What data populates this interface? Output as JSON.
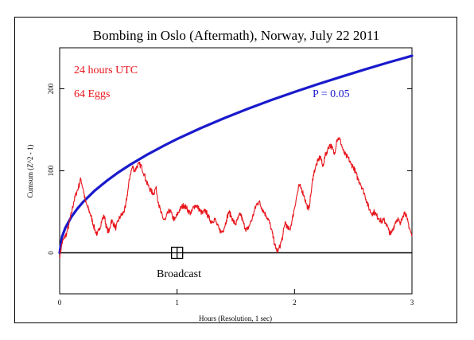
{
  "chart_data": {
    "type": "line",
    "title": "Bombing in Oslo (Aftermath), Norway, July 22 2011",
    "xlabel": "Hours (Resolution, 1 sec)",
    "ylabel": "Cumsum (Z^2 - 1)",
    "xlim": [
      0,
      3
    ],
    "ylim": [
      -50,
      250
    ],
    "x_ticks": [
      0,
      1,
      2,
      3
    ],
    "y_ticks": [
      0,
      100,
      200
    ],
    "annotations": {
      "time_window": "24 hours UTC",
      "eggs": "64 Eggs",
      "p_label": "P = 0.05",
      "event_label": "Broadcast"
    },
    "event_marker": {
      "x": 1.0,
      "y": 0
    },
    "grid": false,
    "series": [
      {
        "role": "cumulative deviation",
        "color": "#e8141b",
        "x": [
          0,
          0.02,
          0.04,
          0.06,
          0.08,
          0.1,
          0.12,
          0.14,
          0.16,
          0.18,
          0.2,
          0.22,
          0.24,
          0.26,
          0.28,
          0.3,
          0.32,
          0.34,
          0.36,
          0.38,
          0.4,
          0.42,
          0.44,
          0.46,
          0.48,
          0.5,
          0.52,
          0.54,
          0.56,
          0.58,
          0.6,
          0.62,
          0.64,
          0.66,
          0.68,
          0.7,
          0.72,
          0.74,
          0.76,
          0.78,
          0.8,
          0.82,
          0.84,
          0.86,
          0.88,
          0.9,
          0.92,
          0.94,
          0.96,
          0.98,
          1.0,
          1.02,
          1.04,
          1.06,
          1.08,
          1.1,
          1.12,
          1.14,
          1.16,
          1.18,
          1.2,
          1.22,
          1.24,
          1.26,
          1.28,
          1.3,
          1.32,
          1.34,
          1.36,
          1.38,
          1.4,
          1.42,
          1.44,
          1.46,
          1.48,
          1.5,
          1.52,
          1.54,
          1.56,
          1.58,
          1.6,
          1.62,
          1.64,
          1.66,
          1.68,
          1.7,
          1.72,
          1.74,
          1.76,
          1.78,
          1.8,
          1.82,
          1.84,
          1.86,
          1.88,
          1.9,
          1.92,
          1.94,
          1.96,
          1.98,
          2.0,
          2.02,
          2.04,
          2.06,
          2.08,
          2.1,
          2.12,
          2.14,
          2.16,
          2.18,
          2.2,
          2.22,
          2.24,
          2.26,
          2.28,
          2.3,
          2.32,
          2.34,
          2.36,
          2.38,
          2.4,
          2.42,
          2.44,
          2.46,
          2.48,
          2.5,
          2.52,
          2.54,
          2.56,
          2.58,
          2.6,
          2.62,
          2.64,
          2.66,
          2.68,
          2.7,
          2.72,
          2.74,
          2.76,
          2.78,
          2.8,
          2.82,
          2.84,
          2.86,
          2.88,
          2.9,
          2.92,
          2.94,
          2.96,
          2.98,
          3.0
        ],
        "y": [
          -5,
          12,
          18,
          24,
          35,
          48,
          62,
          72,
          80,
          90,
          78,
          62,
          55,
          48,
          38,
          28,
          22,
          30,
          40,
          45,
          30,
          25,
          40,
          35,
          30,
          40,
          45,
          48,
          55,
          75,
          95,
          105,
          100,
          106,
          108,
          104,
          96,
          86,
          80,
          75,
          72,
          80,
          62,
          50,
          42,
          40,
          48,
          52,
          44,
          40,
          46,
          52,
          56,
          58,
          55,
          50,
          48,
          56,
          58,
          55,
          50,
          48,
          52,
          46,
          40,
          38,
          42,
          34,
          28,
          25,
          30,
          40,
          50,
          45,
          38,
          35,
          42,
          48,
          38,
          30,
          28,
          35,
          42,
          52,
          60,
          62,
          55,
          50,
          45,
          40,
          30,
          18,
          5,
          2,
          10,
          20,
          38,
          30,
          28,
          40,
          55,
          70,
          82,
          78,
          70,
          60,
          52,
          72,
          95,
          105,
          112,
          118,
          105,
          118,
          125,
          132,
          128,
          120,
          138,
          140,
          132,
          122,
          118,
          115,
          108,
          105,
          98,
          90,
          85,
          78,
          70,
          60,
          52,
          48,
          50,
          45,
          42,
          38,
          40,
          36,
          28,
          22,
          30,
          38,
          42,
          34,
          45,
          50,
          40,
          30,
          20
        ]
      },
      {
        "role": "probability envelope",
        "color": "#1a1acc",
        "x": [
          0,
          0.02,
          0.05,
          0.1,
          0.15,
          0.2,
          0.3,
          0.4,
          0.5,
          0.6,
          0.75,
          0.9,
          1.0,
          1.2,
          1.4,
          1.6,
          1.8,
          2.0,
          2.2,
          2.4,
          2.6,
          2.8,
          3.0
        ],
        "y": [
          0,
          19.6,
          31.0,
          43.9,
          53.7,
          62.0,
          76.0,
          87.7,
          98.1,
          107.4,
          120.1,
          131.6,
          138.7,
          151.9,
          164.1,
          175.4,
          186.1,
          196.1,
          205.7,
          214.8,
          223.6,
          232.1,
          240.2
        ]
      }
    ]
  }
}
